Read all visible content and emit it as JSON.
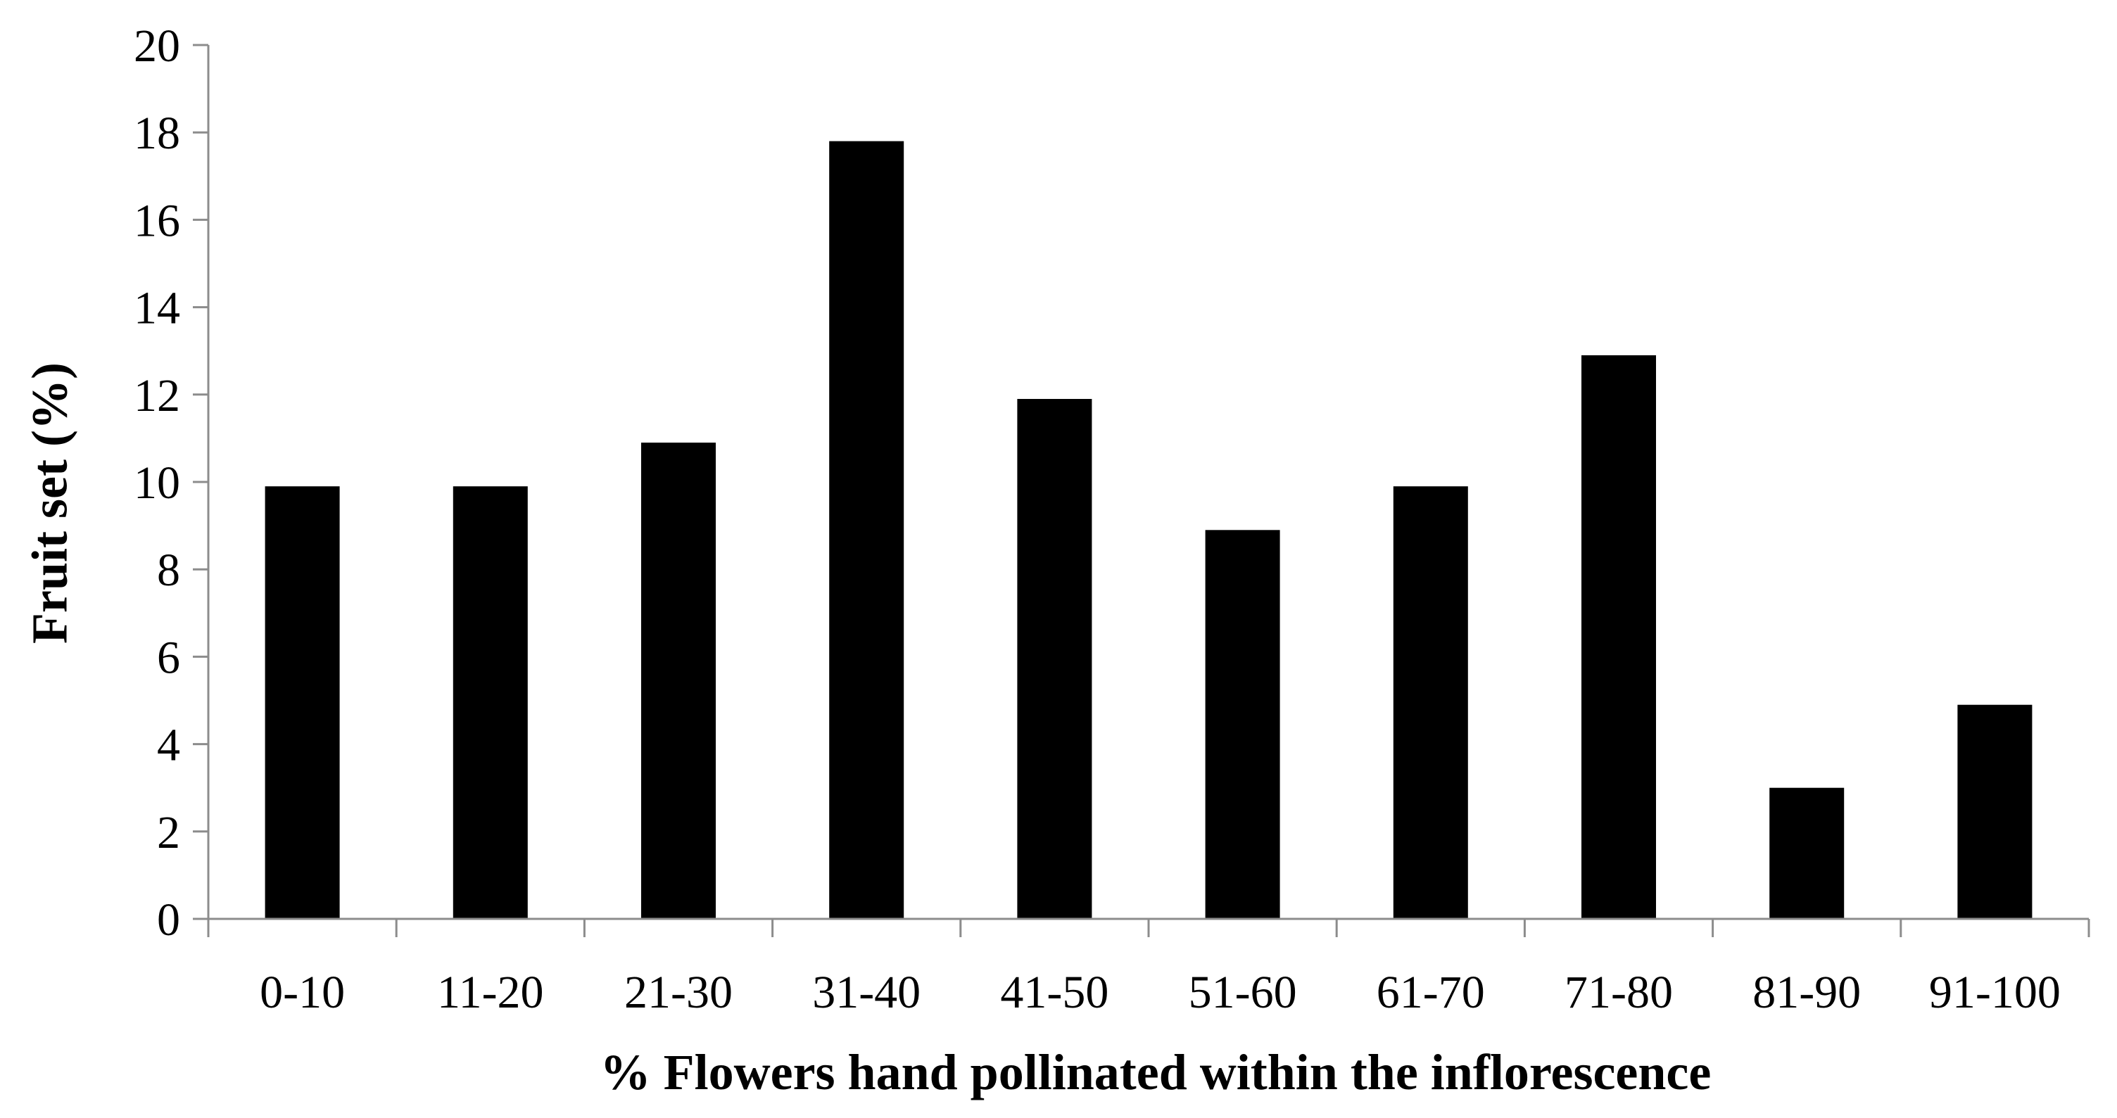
{
  "chart_data": {
    "type": "bar",
    "title": "",
    "xlabel": "% Flowers hand pollinated within the inflorescence",
    "ylabel": "Fruit  set (%)",
    "categories": [
      "0-10",
      "11-20",
      "21-30",
      "31-40",
      "41-50",
      "51-60",
      "61-70",
      "71-80",
      "81-90",
      "91-100"
    ],
    "values": [
      9.9,
      9.9,
      10.9,
      17.8,
      11.9,
      8.9,
      9.9,
      12.9,
      3.0,
      4.9
    ],
    "ylim": [
      0,
      20
    ],
    "yticks": [
      0,
      2,
      4,
      6,
      8,
      10,
      12,
      14,
      16,
      18,
      20
    ],
    "grid": false,
    "legend": "none",
    "bar_color": "#000000",
    "axis_color": "#8c8c8c"
  }
}
